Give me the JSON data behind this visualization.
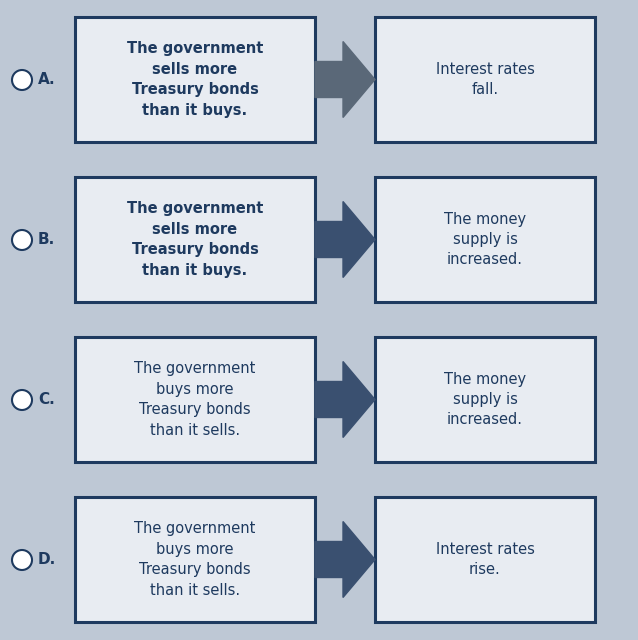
{
  "background_color": "#bec8d5",
  "box_border_color": "#1e3a5f",
  "box_fill_color": "#e8ecf2",
  "text_color": "#1e3a5f",
  "arrow_color": "#3a5070",
  "arrow_color_A": "#5a6878",
  "rows": [
    {
      "label": "A.",
      "left_text": "The government\nsells more\nTreasury bonds\nthan it buys.",
      "right_text": "Interest rates\nfall.",
      "left_bold": true,
      "right_bold": false
    },
    {
      "label": "B.",
      "left_text": "The government\nsells more\nTreasury bonds\nthan it buys.",
      "right_text": "The money\nsupply is\nincreased.",
      "left_bold": true,
      "right_bold": false
    },
    {
      "label": "C.",
      "left_text": "The government\nbuys more\nTreasury bonds\nthan it sells.",
      "right_text": "The money\nsupply is\nincreased.",
      "left_bold": false,
      "right_bold": false
    },
    {
      "label": "D.",
      "left_text": "The government\nbuys more\nTreasury bonds\nthan it sells.",
      "right_text": "Interest rates\nrise.",
      "left_bold": false,
      "right_bold": false
    }
  ],
  "figsize": [
    6.38,
    6.4
  ],
  "dpi": 100
}
